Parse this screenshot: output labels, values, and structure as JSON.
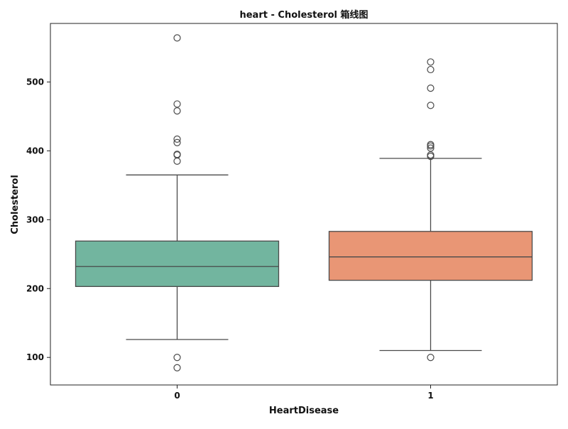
{
  "chart_data": {
    "type": "box",
    "title": "heart - Cholesterol 箱线图",
    "xlabel": "HeartDisease",
    "ylabel": "Cholesterol",
    "categories": [
      "0",
      "1"
    ],
    "ylim": [
      60,
      585
    ],
    "yticks": [
      100,
      200,
      300,
      400,
      500
    ],
    "grid": false,
    "boxes": [
      {
        "category": "0",
        "color": "#72b59f",
        "whisker_low": 126,
        "q1": 203,
        "median": 232,
        "q3": 269,
        "whisker_high": 365,
        "outliers": [
          85,
          100,
          385,
          394,
          395,
          412,
          417,
          458,
          468,
          564
        ]
      },
      {
        "category": "1",
        "color": "#e99675",
        "whisker_low": 110,
        "q1": 212,
        "median": 246,
        "q3": 283,
        "whisker_high": 389,
        "outliers": [
          100,
          392,
          394,
          404,
          407,
          409,
          466,
          491,
          518,
          529
        ]
      }
    ]
  }
}
